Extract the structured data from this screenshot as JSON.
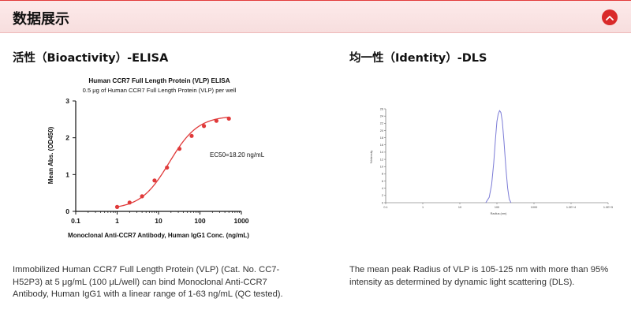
{
  "header": {
    "title": "数据展示"
  },
  "left_panel": {
    "title": "活性（Bioactivity）-ELISA",
    "description": "Immobilized Human CCR7 Full Length Protein (VLP) (Cat. No. CC7-H52P3) at 5 μg/mL (100 μL/well) can bind Monoclonal Anti-CCR7 Antibody, Human IgG1 with a linear range of 1-63 ng/mL (QC tested)."
  },
  "right_panel": {
    "title": "均一性（Identity）-DLS",
    "description": "The mean peak Radius of VLP is 105-125 nm with more than 95% intensity as determined by dynamic light scattering (DLS)."
  },
  "chart_data": [
    {
      "type": "scatter",
      "title": "Human CCR7 Full Length Protein (VLP) ELISA",
      "subtitle": "0.5 μg of Human CCR7 Full Length Protein (VLP) per well",
      "xlabel": "Monoclonal Anti-CCR7 Antibody, Human IgG1 Conc. (ng/mL)",
      "ylabel": "Mean Abs. (OD450)",
      "x_scale": "log",
      "xlim": [
        0.1,
        1000
      ],
      "ylim": [
        0,
        3
      ],
      "x_ticks": [
        "0.1",
        "1",
        "10",
        "100",
        "1000"
      ],
      "y_ticks": [
        "0",
        "1",
        "2",
        "3"
      ],
      "annotation": "EC50=18.20 ng/mL",
      "color": "#e03a3a",
      "points": [
        {
          "x": 1,
          "y": 0.12
        },
        {
          "x": 2,
          "y": 0.24
        },
        {
          "x": 4,
          "y": 0.41
        },
        {
          "x": 8,
          "y": 0.84
        },
        {
          "x": 16,
          "y": 1.19
        },
        {
          "x": 32,
          "y": 1.7
        },
        {
          "x": 63,
          "y": 2.05
        },
        {
          "x": 125,
          "y": 2.32
        },
        {
          "x": 250,
          "y": 2.46
        },
        {
          "x": 500,
          "y": 2.52
        }
      ],
      "fit": {
        "bottom": 0.06,
        "top": 2.6,
        "ec50": 18.2,
        "hill": 1.25
      }
    },
    {
      "type": "line",
      "xlabel": "Radius (nm)",
      "ylabel": "%Intensity",
      "x_scale": "log",
      "xlim": [
        0.1,
        100000
      ],
      "ylim": [
        0,
        26
      ],
      "x_ticks": [
        "0.1",
        "1",
        "10",
        "100",
        "1000",
        "1.0E+4",
        "1.0E+5"
      ],
      "y_ticks": [
        "0",
        "2",
        "4",
        "6",
        "8",
        "10",
        "12",
        "14",
        "16",
        "18",
        "20",
        "22",
        "24",
        "26"
      ],
      "color": "#7b7bd6",
      "series": [
        {
          "x": [
            50,
            62,
            72,
            82,
            92,
            100,
            108,
            118,
            128,
            140,
            155,
            175,
            195,
            215,
            240
          ],
          "y": [
            0,
            1.5,
            5,
            11,
            18,
            22.5,
            24.5,
            25.5,
            25,
            22.5,
            17,
            9.5,
            4,
            1,
            0
          ]
        }
      ]
    }
  ]
}
